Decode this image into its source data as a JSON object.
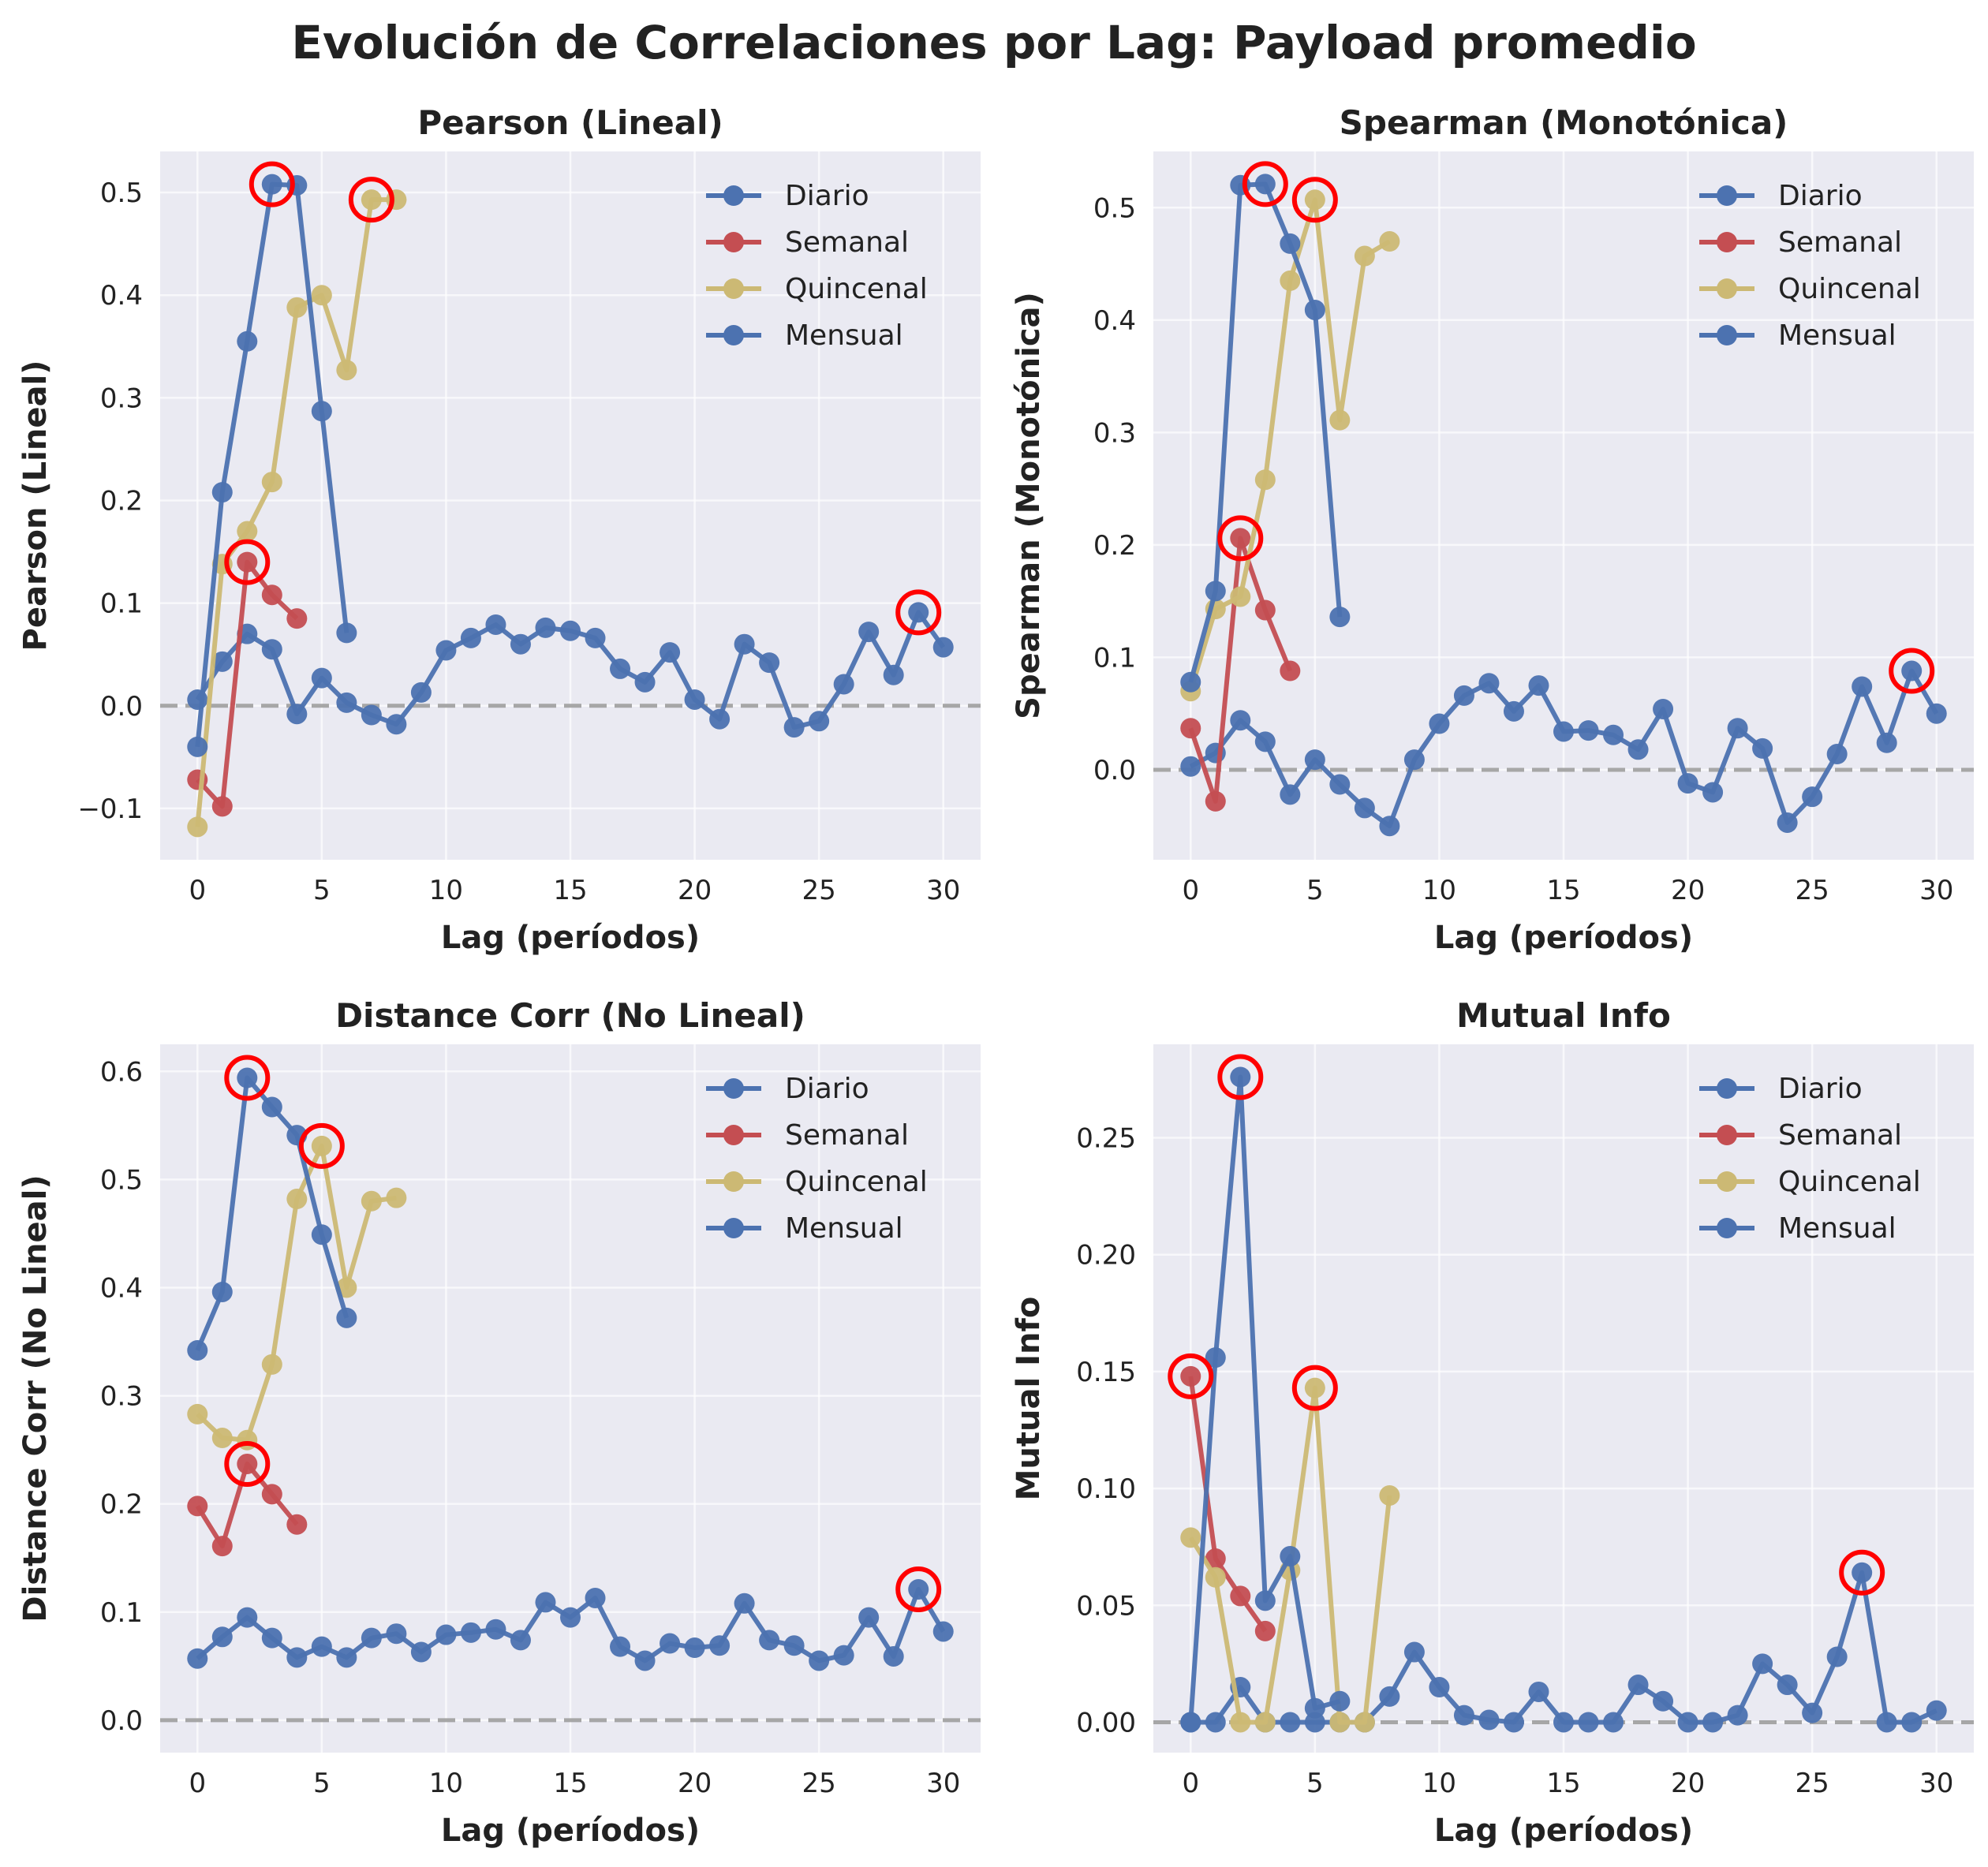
{
  "title": "Evolución de Correlaciones por Lag: Payload promedio",
  "colors": {
    "Diario": "#4c72b0",
    "Semanal": "#c44e52",
    "Quincenal": "#ccb974",
    "Mensual": "#4c72b0",
    "highlight": "#ff0000",
    "zero_line": "#999999",
    "panel_bg": "#eaeaf2"
  },
  "chart_data": [
    {
      "type": "line",
      "title": "Pearson (Lineal)",
      "xlabel": "Lag (períodos)",
      "ylabel": "Pearson (Lineal)",
      "xlim": [
        -1.5,
        31.5
      ],
      "ylim": [
        -0.15,
        0.54
      ],
      "xticks": [
        0,
        5,
        10,
        15,
        20,
        25,
        30
      ],
      "yticks": [
        -0.1,
        0.0,
        0.1,
        0.2,
        0.3,
        0.4,
        0.5
      ],
      "ytick_labels": [
        "−0.1",
        "0.0",
        "0.1",
        "0.2",
        "0.3",
        "0.4",
        "0.5"
      ],
      "grid": true,
      "legend": "top-right",
      "series": [
        {
          "name": "Diario",
          "x": [
            0,
            1,
            2,
            3,
            4,
            5,
            6,
            7,
            8,
            9,
            10,
            11,
            12,
            13,
            14,
            15,
            16,
            17,
            18,
            19,
            20,
            21,
            22,
            23,
            24,
            25,
            26,
            27,
            28,
            29,
            30
          ],
          "y": [
            0.006,
            0.043,
            0.07,
            0.055,
            -0.008,
            0.027,
            0.003,
            -0.009,
            -0.018,
            0.013,
            0.054,
            0.066,
            0.079,
            0.06,
            0.076,
            0.073,
            0.066,
            0.036,
            0.023,
            0.052,
            0.006,
            -0.013,
            0.06,
            0.042,
            -0.021,
            -0.015,
            0.021,
            0.072,
            0.03,
            0.091,
            0.057
          ]
        },
        {
          "name": "Semanal",
          "x": [
            0,
            1,
            2,
            3,
            4
          ],
          "y": [
            -0.072,
            -0.098,
            0.14,
            0.108,
            0.085
          ]
        },
        {
          "name": "Quincenal",
          "x": [
            0,
            1,
            2,
            3,
            4,
            5,
            6,
            7,
            8
          ],
          "y": [
            -0.118,
            0.138,
            0.17,
            0.218,
            0.388,
            0.4,
            0.327,
            0.493,
            0.493
          ]
        },
        {
          "name": "Mensual",
          "x": [
            0,
            1,
            2,
            3,
            4,
            5,
            6
          ],
          "y": [
            -0.04,
            0.208,
            0.355,
            0.508,
            0.507,
            0.287,
            0.071
          ]
        }
      ],
      "highlights": [
        {
          "x": 3,
          "y": 0.508
        },
        {
          "x": 2,
          "y": 0.14
        },
        {
          "x": 7,
          "y": 0.493
        },
        {
          "x": 29,
          "y": 0.091
        }
      ]
    },
    {
      "type": "line",
      "title": "Spearman (Monotónica)",
      "xlabel": "Lag (períodos)",
      "ylabel": "Spearman (Monotónica)",
      "xlim": [
        -1.5,
        31.5
      ],
      "ylim": [
        -0.08,
        0.55
      ],
      "xticks": [
        0,
        5,
        10,
        15,
        20,
        25,
        30
      ],
      "yticks": [
        0.0,
        0.1,
        0.2,
        0.3,
        0.4,
        0.5
      ],
      "ytick_labels": [
        "0.0",
        "0.1",
        "0.2",
        "0.3",
        "0.4",
        "0.5"
      ],
      "grid": true,
      "legend": "top-right",
      "series": [
        {
          "name": "Diario",
          "x": [
            0,
            1,
            2,
            3,
            4,
            5,
            6,
            7,
            8,
            9,
            10,
            11,
            12,
            13,
            14,
            15,
            16,
            17,
            18,
            19,
            20,
            21,
            22,
            23,
            24,
            25,
            26,
            27,
            28,
            29,
            30
          ],
          "y": [
            0.003,
            0.015,
            0.044,
            0.025,
            -0.022,
            0.009,
            -0.013,
            -0.034,
            -0.05,
            0.009,
            0.041,
            0.066,
            0.077,
            0.052,
            0.075,
            0.034,
            0.035,
            0.031,
            0.018,
            0.054,
            -0.012,
            -0.02,
            0.037,
            0.019,
            -0.047,
            -0.024,
            0.014,
            0.074,
            0.024,
            0.088,
            0.05
          ]
        },
        {
          "name": "Semanal",
          "x": [
            0,
            1,
            2,
            3,
            4
          ],
          "y": [
            0.037,
            -0.028,
            0.206,
            0.142,
            0.088
          ]
        },
        {
          "name": "Quincenal",
          "x": [
            0,
            1,
            2,
            3,
            4,
            5,
            6,
            7,
            8
          ],
          "y": [
            0.07,
            0.143,
            0.154,
            0.258,
            0.435,
            0.507,
            0.311,
            0.457,
            0.47
          ]
        },
        {
          "name": "Mensual",
          "x": [
            0,
            1,
            2,
            3,
            4,
            5,
            6
          ],
          "y": [
            0.078,
            0.159,
            0.52,
            0.521,
            0.468,
            0.409,
            0.136
          ]
        }
      ],
      "highlights": [
        {
          "x": 3,
          "y": 0.521
        },
        {
          "x": 2,
          "y": 0.206
        },
        {
          "x": 5,
          "y": 0.507
        },
        {
          "x": 29,
          "y": 0.088
        }
      ]
    },
    {
      "type": "line",
      "title": "Distance Corr (No Lineal)",
      "xlabel": "Lag (períodos)",
      "ylabel": "Distance Corr (No Lineal)",
      "xlim": [
        -1.5,
        31.5
      ],
      "ylim": [
        -0.03,
        0.625
      ],
      "xticks": [
        0,
        5,
        10,
        15,
        20,
        25,
        30
      ],
      "yticks": [
        0.0,
        0.1,
        0.2,
        0.3,
        0.4,
        0.5,
        0.6
      ],
      "ytick_labels": [
        "0.0",
        "0.1",
        "0.2",
        "0.3",
        "0.4",
        "0.5",
        "0.6"
      ],
      "grid": true,
      "legend": "top-right",
      "series": [
        {
          "name": "Diario",
          "x": [
            0,
            1,
            2,
            3,
            4,
            5,
            6,
            7,
            8,
            9,
            10,
            11,
            12,
            13,
            14,
            15,
            16,
            17,
            18,
            19,
            20,
            21,
            22,
            23,
            24,
            25,
            26,
            27,
            28,
            29,
            30
          ],
          "y": [
            0.057,
            0.077,
            0.095,
            0.076,
            0.058,
            0.068,
            0.058,
            0.076,
            0.08,
            0.063,
            0.079,
            0.081,
            0.084,
            0.074,
            0.109,
            0.095,
            0.113,
            0.068,
            0.055,
            0.071,
            0.067,
            0.069,
            0.108,
            0.074,
            0.069,
            0.055,
            0.06,
            0.095,
            0.059,
            0.121,
            0.082
          ]
        },
        {
          "name": "Semanal",
          "x": [
            0,
            1,
            2,
            3,
            4
          ],
          "y": [
            0.198,
            0.161,
            0.237,
            0.209,
            0.181
          ]
        },
        {
          "name": "Quincenal",
          "x": [
            0,
            1,
            2,
            3,
            4,
            5,
            6,
            7,
            8
          ],
          "y": [
            0.283,
            0.261,
            0.259,
            0.329,
            0.482,
            0.531,
            0.4,
            0.48,
            0.483
          ]
        },
        {
          "name": "Mensual",
          "x": [
            0,
            1,
            2,
            3,
            4,
            5,
            6
          ],
          "y": [
            0.342,
            0.396,
            0.594,
            0.567,
            0.541,
            0.449,
            0.372
          ]
        }
      ],
      "highlights": [
        {
          "x": 2,
          "y": 0.594
        },
        {
          "x": 2,
          "y": 0.237
        },
        {
          "x": 5,
          "y": 0.531
        },
        {
          "x": 29,
          "y": 0.121
        }
      ]
    },
    {
      "type": "line",
      "title": "Mutual Info",
      "xlabel": "Lag (períodos)",
      "ylabel": "Mutual Info",
      "xlim": [
        -1.5,
        31.5
      ],
      "ylim": [
        -0.013,
        0.29
      ],
      "xticks": [
        0,
        5,
        10,
        15,
        20,
        25,
        30
      ],
      "yticks": [
        0.0,
        0.05,
        0.1,
        0.15,
        0.2,
        0.25
      ],
      "ytick_labels": [
        "0.00",
        "0.05",
        "0.10",
        "0.15",
        "0.20",
        "0.25"
      ],
      "grid": true,
      "legend": "top-right",
      "series": [
        {
          "name": "Diario",
          "x": [
            0,
            1,
            2,
            3,
            4,
            5,
            6,
            7,
            8,
            9,
            10,
            11,
            12,
            13,
            14,
            15,
            16,
            17,
            18,
            19,
            20,
            21,
            22,
            23,
            24,
            25,
            26,
            27,
            28,
            29,
            30
          ],
          "y": [
            0.0,
            0.0,
            0.015,
            0.0,
            0.0,
            0.0,
            0.0,
            0.0,
            0.011,
            0.03,
            0.015,
            0.003,
            0.001,
            0.0,
            0.013,
            0.0,
            0.0,
            0.0,
            0.016,
            0.009,
            0.0,
            0.0,
            0.003,
            0.025,
            0.016,
            0.004,
            0.028,
            0.064,
            0.0,
            0.0,
            0.005
          ]
        },
        {
          "name": "Semanal",
          "x": [
            0,
            1,
            2,
            3
          ],
          "y": [
            0.148,
            0.07,
            0.054,
            0.039
          ]
        },
        {
          "name": "Quincenal",
          "x": [
            0,
            1,
            2,
            3,
            4,
            5,
            6,
            7,
            8
          ],
          "y": [
            0.079,
            0.062,
            0.0,
            0.0,
            0.065,
            0.143,
            0.0,
            0.0,
            0.097
          ]
        },
        {
          "name": "Mensual",
          "x": [
            0,
            1,
            2,
            3,
            4,
            5,
            6
          ],
          "y": [
            0.0,
            0.156,
            0.276,
            0.052,
            0.071,
            0.006,
            0.009
          ]
        }
      ],
      "highlights": [
        {
          "x": 2,
          "y": 0.276
        },
        {
          "x": 0,
          "y": 0.148
        },
        {
          "x": 5,
          "y": 0.143
        },
        {
          "x": 27,
          "y": 0.064
        }
      ]
    }
  ]
}
